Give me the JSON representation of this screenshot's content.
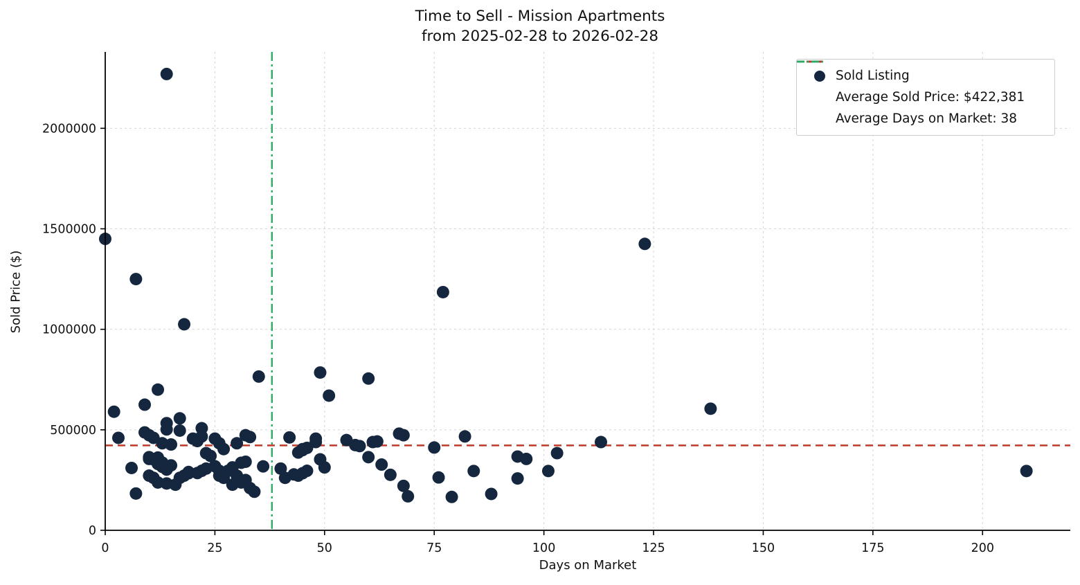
{
  "chart": {
    "title_line1": "Time to Sell - Mission Apartments",
    "title_line2": "from 2025-02-28 to 2026-02-28",
    "xlabel": "Days on Market",
    "ylabel": "Sold Price ($)"
  },
  "legend": {
    "items": [
      {
        "label": "Sold Listing",
        "marker": "dot"
      },
      {
        "label": "Average Sold Price: $422,381",
        "marker": "dashed-line"
      },
      {
        "label": "Average Days on Market: 38",
        "marker": "dashdot-line"
      }
    ]
  },
  "colors": {
    "point": "#14273f",
    "avg_price_line": "#c0392b",
    "avg_days_line": "#2eab63",
    "grid": "#d4d4d4",
    "axis": "#000000",
    "tick_label": "#111111"
  },
  "chart_data": {
    "type": "scatter",
    "title": "Time to Sell - Mission Apartments from 2025-02-28 to 2026-02-28",
    "xlabel": "Days on Market",
    "ylabel": "Sold Price ($)",
    "xlim": [
      0,
      220
    ],
    "ylim": [
      0,
      2380000
    ],
    "x_ticks": [
      0,
      25,
      50,
      75,
      100,
      125,
      150,
      175,
      200
    ],
    "y_ticks": [
      0,
      500000,
      1000000,
      1500000,
      2000000
    ],
    "grid": true,
    "legend_position": "upper right",
    "series_label": "Sold Listing",
    "avg_sold_price": 422381,
    "avg_days_on_market": 38,
    "points": [
      [
        14,
        2270000
      ],
      [
        0,
        1450000
      ],
      [
        7,
        1250000
      ],
      [
        18,
        1025000
      ],
      [
        123,
        1425000
      ],
      [
        77,
        1185000
      ],
      [
        138,
        605000
      ],
      [
        210,
        295000
      ],
      [
        2,
        590000
      ],
      [
        12,
        700000
      ],
      [
        9,
        625000
      ],
      [
        35,
        765000
      ],
      [
        49,
        785000
      ],
      [
        51,
        670000
      ],
      [
        60,
        755000
      ],
      [
        3,
        460000
      ],
      [
        9,
        487000
      ],
      [
        10,
        473000
      ],
      [
        11,
        460000
      ],
      [
        14,
        533000
      ],
      [
        14,
        502000
      ],
      [
        17,
        557000
      ],
      [
        17,
        496000
      ],
      [
        13,
        433000
      ],
      [
        15,
        427000
      ],
      [
        22,
        508000
      ],
      [
        20,
        456000
      ],
      [
        21,
        444000
      ],
      [
        22,
        467000
      ],
      [
        25,
        456000
      ],
      [
        26,
        433000
      ],
      [
        27,
        404000
      ],
      [
        6,
        310000
      ],
      [
        10,
        364000
      ],
      [
        10,
        355000
      ],
      [
        11,
        353000
      ],
      [
        12,
        362000
      ],
      [
        12,
        330000
      ],
      [
        13,
        316000
      ],
      [
        14,
        302000
      ],
      [
        15,
        323000
      ],
      [
        13,
        337000
      ],
      [
        10,
        272000
      ],
      [
        11,
        261000
      ],
      [
        12,
        238000
      ],
      [
        14,
        233000
      ],
      [
        7,
        183000
      ],
      [
        17,
        261000
      ],
      [
        18,
        272000
      ],
      [
        19,
        284000
      ],
      [
        19,
        290000
      ],
      [
        16,
        227000
      ],
      [
        21,
        285000
      ],
      [
        22,
        296000
      ],
      [
        23,
        307000
      ],
      [
        25,
        319000
      ],
      [
        26,
        296000
      ],
      [
        26,
        272000
      ],
      [
        27,
        261000
      ],
      [
        23,
        384000
      ],
      [
        24,
        370000
      ],
      [
        32,
        473000
      ],
      [
        33,
        464000
      ],
      [
        30,
        433000
      ],
      [
        42,
        462000
      ],
      [
        44,
        387000
      ],
      [
        45,
        399000
      ],
      [
        45,
        404000
      ],
      [
        46,
        410000
      ],
      [
        48,
        456000
      ],
      [
        48,
        439000
      ],
      [
        49,
        353000
      ],
      [
        50,
        313000
      ],
      [
        31,
        336000
      ],
      [
        32,
        341000
      ],
      [
        29,
        313000
      ],
      [
        28,
        296000
      ],
      [
        30,
        272000
      ],
      [
        32,
        250000
      ],
      [
        29,
        227000
      ],
      [
        31,
        238000
      ],
      [
        34,
        192000
      ],
      [
        33,
        210000
      ],
      [
        36,
        318000
      ],
      [
        40,
        307000
      ],
      [
        41,
        261000
      ],
      [
        43,
        278000
      ],
      [
        44,
        272000
      ],
      [
        45,
        284000
      ],
      [
        46,
        296000
      ],
      [
        55,
        449000
      ],
      [
        57,
        424000
      ],
      [
        58,
        419000
      ],
      [
        61,
        439000
      ],
      [
        62,
        442000
      ],
      [
        60,
        364000
      ],
      [
        63,
        327000
      ],
      [
        65,
        276000
      ],
      [
        68,
        221000
      ],
      [
        69,
        169000
      ],
      [
        67,
        481000
      ],
      [
        68,
        473000
      ],
      [
        75,
        412000
      ],
      [
        76,
        263000
      ],
      [
        79,
        166000
      ],
      [
        82,
        467000
      ],
      [
        84,
        295000
      ],
      [
        88,
        181000
      ],
      [
        94,
        367000
      ],
      [
        96,
        355000
      ],
      [
        94,
        258000
      ],
      [
        103,
        384000
      ],
      [
        101,
        295000
      ],
      [
        113,
        439000
      ]
    ]
  }
}
